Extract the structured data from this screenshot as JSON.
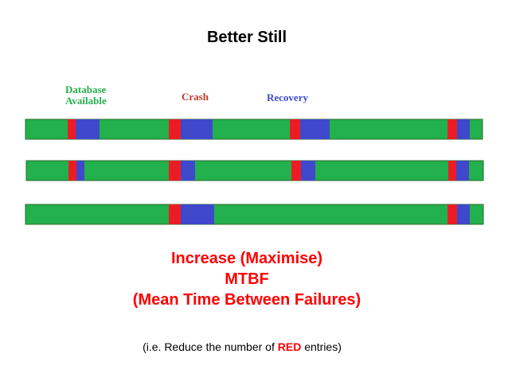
{
  "title": "Better Still",
  "legend": {
    "available": [
      "Database",
      "Available"
    ],
    "crash": "Crash",
    "recovery": "Recovery"
  },
  "colors": {
    "available": "#22b14c",
    "crash": "#ed1c24",
    "recovery": "#3f48cc",
    "highlight": "#ff0000",
    "legend_available": "#22b14c",
    "legend_crash": "#c0392b",
    "legend_recovery": "#3f48cc"
  },
  "caption": {
    "line1": "Increase (Maximise)",
    "line2": "MTBF",
    "line3": "(Mean Time Between Failures)"
  },
  "note": {
    "prefix": "(i.e. Reduce the number of ",
    "emphasis": "RED",
    "suffix": " entries)"
  }
}
